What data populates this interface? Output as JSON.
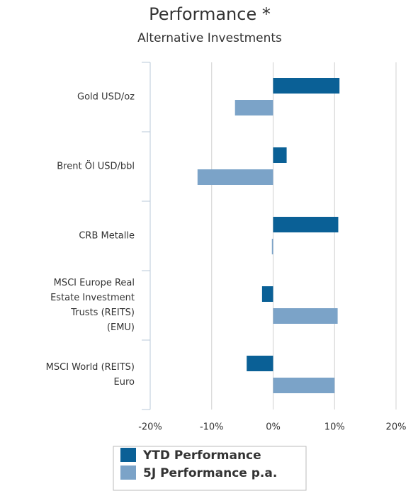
{
  "chart_data": {
    "type": "hbar",
    "title": "Performance *",
    "subtitle": "Alternative Investments",
    "categories": [
      "Gold USD/oz",
      "Brent Öl USD/bbl",
      "CRB Metalle",
      "MSCI Europe Real\nEstate Investment\nTrusts (REITS)\n(EMU)",
      "MSCI World (REITS)\nEuro"
    ],
    "series": [
      {
        "name": "YTD Performance",
        "color": "#0a6096",
        "values": [
          10.8,
          2.2,
          10.6,
          -1.8,
          -4.3
        ]
      },
      {
        "name": "5J Performance p.a.",
        "color": "#7ba3c8",
        "values": [
          -6.2,
          -12.3,
          -0.2,
          10.5,
          10.0
        ]
      }
    ],
    "xlim": [
      -20,
      20
    ],
    "xticks": [
      {
        "value": -20,
        "label": "-20%"
      },
      {
        "value": -10,
        "label": "-10%"
      },
      {
        "value": 0,
        "label": "0%"
      },
      {
        "value": 10,
        "label": "10%"
      },
      {
        "value": 20,
        "label": "20%"
      }
    ],
    "grid": true
  }
}
